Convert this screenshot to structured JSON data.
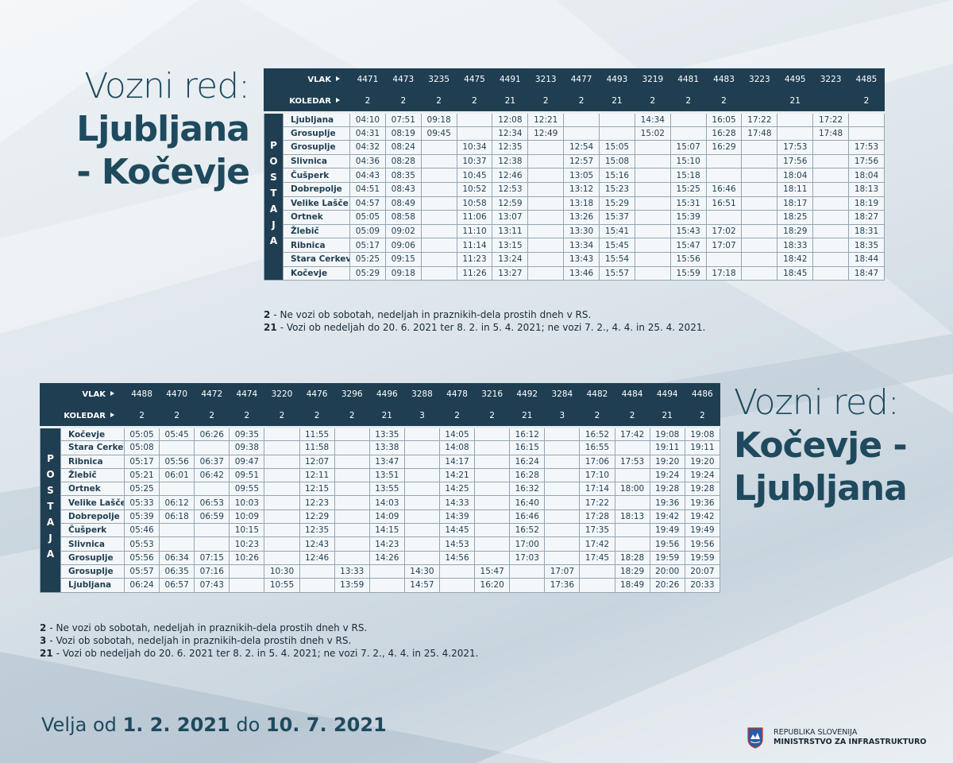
{
  "heading_1": {
    "line1": "Vozni red:",
    "line2": "Ljubljana",
    "line3": "- Kočevje"
  },
  "timetable_1": {
    "row_labels": {
      "train": "VLAK",
      "calendar": "KOLEDAR"
    },
    "side_label": "POSTAJA",
    "trains": [
      "4471",
      "4473",
      "3235",
      "4475",
      "4491",
      "3213",
      "4477",
      "4493",
      "3219",
      "4481",
      "4483",
      "3223",
      "4495",
      "3223",
      "4485"
    ],
    "calendar": [
      "2",
      "2",
      "2",
      "2",
      "21",
      "2",
      "2",
      "21",
      "2",
      "2",
      "2",
      null,
      "21",
      null,
      "2"
    ],
    "rows": [
      {
        "station": "Ljubljana",
        "times": [
          "04:10",
          "07:51",
          "09:18",
          null,
          "12:08",
          "12:21",
          null,
          null,
          "14:34",
          null,
          "16:05",
          "17:22",
          null,
          "17:22",
          null
        ]
      },
      {
        "station": "Grosuplje",
        "times": [
          "04:31",
          "08:19",
          "09:45",
          null,
          "12:34",
          "12:49",
          null,
          null,
          "15:02",
          null,
          "16:28",
          "17:48",
          null,
          "17:48",
          null
        ]
      },
      {
        "station": "Grosuplje",
        "times": [
          "04:32",
          "08:24",
          null,
          "10:34",
          "12:35",
          null,
          "12:54",
          "15:05",
          null,
          "15:07",
          "16:29",
          null,
          "17:53",
          null,
          "17:53"
        ]
      },
      {
        "station": "Slivnica",
        "times": [
          "04:36",
          "08:28",
          null,
          "10:37",
          "12:38",
          null,
          "12:57",
          "15:08",
          null,
          "15:10",
          null,
          null,
          "17:56",
          null,
          "17:56"
        ]
      },
      {
        "station": "Čušperk",
        "times": [
          "04:43",
          "08:35",
          null,
          "10:45",
          "12:46",
          null,
          "13:05",
          "15:16",
          null,
          "15:18",
          null,
          null,
          "18:04",
          null,
          "18:04"
        ]
      },
      {
        "station": "Dobrepolje",
        "times": [
          "04:51",
          "08:43",
          null,
          "10:52",
          "12:53",
          null,
          "13:12",
          "15:23",
          null,
          "15:25",
          "16:46",
          null,
          "18:11",
          null,
          "18:13"
        ]
      },
      {
        "station": "Velike Lašče",
        "times": [
          "04:57",
          "08:49",
          null,
          "10:58",
          "12:59",
          null,
          "13:18",
          "15:29",
          null,
          "15:31",
          "16:51",
          null,
          "18:17",
          null,
          "18:19"
        ]
      },
      {
        "station": "Ortnek",
        "times": [
          "05:05",
          "08:58",
          null,
          "11:06",
          "13:07",
          null,
          "13:26",
          "15:37",
          null,
          "15:39",
          null,
          null,
          "18:25",
          null,
          "18:27"
        ]
      },
      {
        "station": "Žlebič",
        "times": [
          "05:09",
          "09:02",
          null,
          "11:10",
          "13:11",
          null,
          "13:30",
          "15:41",
          null,
          "15:43",
          "17:02",
          null,
          "18:29",
          null,
          "18:31"
        ]
      },
      {
        "station": "Ribnica",
        "times": [
          "05:17",
          "09:06",
          null,
          "11:14",
          "13:15",
          null,
          "13:34",
          "15:45",
          null,
          "15:47",
          "17:07",
          null,
          "18:33",
          null,
          "18:35"
        ]
      },
      {
        "station": "Stara Cerkev",
        "times": [
          "05:25",
          "09:15",
          null,
          "11:23",
          "13:24",
          null,
          "13:43",
          "15:54",
          null,
          "15:56",
          null,
          null,
          "18:42",
          null,
          "18:44"
        ]
      },
      {
        "station": "Kočevje",
        "times": [
          "05:29",
          "09:18",
          null,
          "11:26",
          "13:27",
          null,
          "13:46",
          "15:57",
          null,
          "15:59",
          "17:18",
          null,
          "18:45",
          null,
          "18:47"
        ]
      }
    ],
    "notes": [
      {
        "code": "2",
        "text": "- Ne vozi ob sobotah, nedeljah in praznikih-dela prostih dneh v RS."
      },
      {
        "code": "21",
        "text": "- Vozi ob nedeljah do 20. 6. 2021 ter 8. 2. in 5. 4. 2021; ne vozi 7. 2., 4. 4. in 25. 4. 2021."
      }
    ]
  },
  "heading_2": {
    "line1": "Vozni red:",
    "line2": "Kočevje -",
    "line3": "Ljubljana"
  },
  "timetable_2": {
    "row_labels": {
      "train": "VLAK",
      "calendar": "KOLEDAR"
    },
    "side_label": "POSTAJA",
    "trains": [
      "4488",
      "4470",
      "4472",
      "4474",
      "3220",
      "4476",
      "3296",
      "4496",
      "3288",
      "4478",
      "3216",
      "4492",
      "3284",
      "4482",
      "4484",
      "4494",
      "4486"
    ],
    "calendar": [
      "2",
      "2",
      "2",
      "2",
      "2",
      "2",
      "2",
      "21",
      "3",
      "2",
      "2",
      "21",
      "3",
      "2",
      "2",
      "21",
      "2"
    ],
    "rows": [
      {
        "station": "Kočevje",
        "times": [
          "05:05",
          "05:45",
          "06:26",
          "09:35",
          null,
          "11:55",
          null,
          "13:35",
          null,
          "14:05",
          null,
          "16:12",
          null,
          "16:52",
          "17:42",
          "19:08",
          "19:08"
        ]
      },
      {
        "station": "Stara Cerkev",
        "times": [
          "05:08",
          null,
          null,
          "09:38",
          null,
          "11:58",
          null,
          "13:38",
          null,
          "14:08",
          null,
          "16:15",
          null,
          "16:55",
          null,
          "19:11",
          "19:11"
        ]
      },
      {
        "station": "Ribnica",
        "times": [
          "05:17",
          "05:56",
          "06:37",
          "09:47",
          null,
          "12:07",
          null,
          "13:47",
          null,
          "14:17",
          null,
          "16:24",
          null,
          "17:06",
          "17:53",
          "19:20",
          "19:20"
        ]
      },
      {
        "station": "Žlebič",
        "times": [
          "05:21",
          "06:01",
          "06:42",
          "09:51",
          null,
          "12:11",
          null,
          "13:51",
          null,
          "14:21",
          null,
          "16:28",
          null,
          "17:10",
          null,
          "19:24",
          "19:24"
        ]
      },
      {
        "station": "Ortnek",
        "times": [
          "05:25",
          null,
          null,
          "09:55",
          null,
          "12:15",
          null,
          "13:55",
          null,
          "14:25",
          null,
          "16:32",
          null,
          "17:14",
          "18:00",
          "19:28",
          "19:28"
        ]
      },
      {
        "station": "Velike Lašče",
        "times": [
          "05:33",
          "06:12",
          "06:53",
          "10:03",
          null,
          "12:23",
          null,
          "14:03",
          null,
          "14:33",
          null,
          "16:40",
          null,
          "17:22",
          null,
          "19:36",
          "19:36"
        ]
      },
      {
        "station": "Dobrepolje",
        "times": [
          "05:39",
          "06:18",
          "06:59",
          "10:09",
          null,
          "12:29",
          null,
          "14:09",
          null,
          "14:39",
          null,
          "16:46",
          null,
          "17:28",
          "18:13",
          "19:42",
          "19:42"
        ]
      },
      {
        "station": "Čušperk",
        "times": [
          "05:46",
          null,
          null,
          "10:15",
          null,
          "12:35",
          null,
          "14:15",
          null,
          "14:45",
          null,
          "16:52",
          null,
          "17:35",
          null,
          "19:49",
          "19:49"
        ]
      },
      {
        "station": "Slivnica",
        "times": [
          "05:53",
          null,
          null,
          "10:23",
          null,
          "12:43",
          null,
          "14:23",
          null,
          "14:53",
          null,
          "17:00",
          null,
          "17:42",
          null,
          "19:56",
          "19:56"
        ]
      },
      {
        "station": "Grosuplje",
        "times": [
          "05:56",
          "06:34",
          "07:15",
          "10:26",
          null,
          "12:46",
          null,
          "14:26",
          null,
          "14:56",
          null,
          "17:03",
          null,
          "17:45",
          "18:28",
          "19:59",
          "19:59"
        ]
      },
      {
        "station": "Grosuplje",
        "times": [
          "05:57",
          "06:35",
          "07:16",
          null,
          "10:30",
          null,
          "13:33",
          null,
          "14:30",
          null,
          "15:47",
          null,
          "17:07",
          null,
          "18:29",
          "20:00",
          "20:07"
        ]
      },
      {
        "station": "Ljubljana",
        "times": [
          "06:24",
          "06:57",
          "07:43",
          null,
          "10:55",
          null,
          "13:59",
          null,
          "14:57",
          null,
          "16:20",
          null,
          "17:36",
          null,
          "18:49",
          "20:26",
          "20:33"
        ]
      }
    ],
    "notes": [
      {
        "code": "2",
        "text": "- Ne vozi ob sobotah, nedeljah in praznikih-dela prostih dneh v RS."
      },
      {
        "code": "3",
        "text": "- Vozi ob sobotah, nedeljah in praznikih-dela prostih dneh v RS."
      },
      {
        "code": "21",
        "text": "- Vozi ob nedeljah do 20. 6. 2021 ter 8. 2. in 5. 4. 2021; ne vozi 7. 2., 4. 4. in 25. 4.2021."
      }
    ]
  },
  "validity": {
    "prefix": "Velja od",
    "from": "1. 2. 2021",
    "middle": "do",
    "to": "10. 7. 2021"
  },
  "logo": {
    "line1": "REPUBLIKA SLOVENIJA",
    "line2": "MINISTRSTVO ZA INFRASTRUKTURO"
  }
}
